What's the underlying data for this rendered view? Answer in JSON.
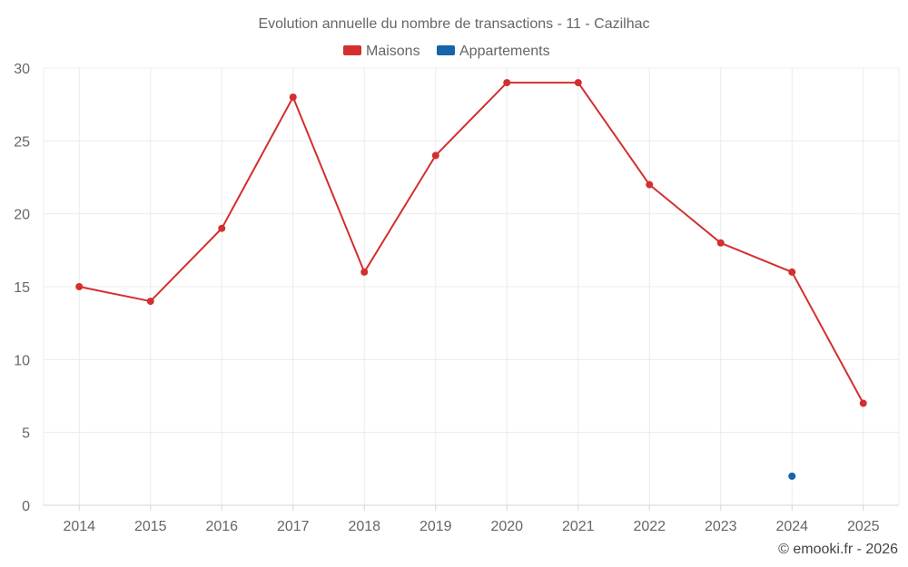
{
  "chart_data": {
    "type": "line",
    "title": "Evolution annuelle du nombre de transactions - 11 - Cazilhac",
    "categories": [
      "2014",
      "2015",
      "2016",
      "2017",
      "2018",
      "2019",
      "2020",
      "2021",
      "2022",
      "2023",
      "2024",
      "2025"
    ],
    "series": [
      {
        "name": "Maisons",
        "color": "#d32f2f",
        "values": [
          15,
          14,
          19,
          28,
          16,
          24,
          29,
          29,
          22,
          18,
          16,
          7
        ]
      },
      {
        "name": "Appartements",
        "color": "#1565a8",
        "values": [
          null,
          null,
          null,
          null,
          null,
          null,
          null,
          null,
          null,
          null,
          2,
          null
        ]
      }
    ],
    "ylim": [
      0,
      30
    ],
    "yticks": [
      0,
      5,
      10,
      15,
      20,
      25,
      30
    ],
    "grid": true,
    "legend": "top-center",
    "xlabel": "",
    "ylabel": ""
  },
  "credit": "© emooki.fr - 2026"
}
